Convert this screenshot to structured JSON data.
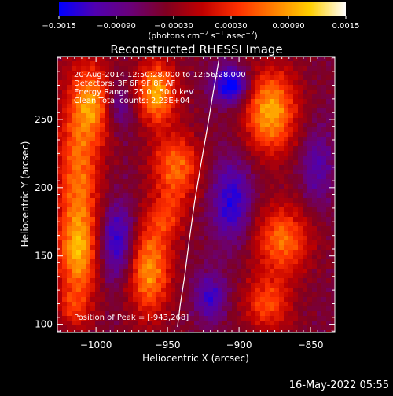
{
  "chart_data": {
    "type": "heatmap",
    "title": "Reconstructed RHESSI Image",
    "xlabel": "Heliocentric X (arcsec)",
    "ylabel": "Heliocentric Y (arcsec)",
    "xlim": [
      -1027,
      -833
    ],
    "ylim": [
      94,
      296
    ],
    "x_ticks": [
      {
        "value": -1000,
        "label": "−1000"
      },
      {
        "value": -950,
        "label": "−950"
      },
      {
        "value": -900,
        "label": "−900"
      },
      {
        "value": -850,
        "label": "−850"
      }
    ],
    "y_ticks": [
      {
        "value": 100,
        "label": "100"
      },
      {
        "value": 150,
        "label": "150"
      },
      {
        "value": 200,
        "label": "200"
      },
      {
        "value": 250,
        "label": "250"
      }
    ],
    "colorbar": {
      "range": [
        -0.0015,
        0.0015
      ],
      "ticks": [
        {
          "value": -0.0015,
          "label": "−0.0015"
        },
        {
          "value": -0.0009,
          "label": "−0.00090"
        },
        {
          "value": -0.0003,
          "label": "−0.00030"
        },
        {
          "value": 0.0003,
          "label": "0.00030"
        },
        {
          "value": 0.0009,
          "label": "0.00090"
        },
        {
          "value": 0.0015,
          "label": "0.0015"
        }
      ],
      "unit_main": "(photons cm",
      "unit_sup1": "−2",
      "unit_mid1": " s",
      "unit_sup2": "−1",
      "unit_mid2": " asec",
      "unit_sup3": "−2",
      "unit_end": ")",
      "colors": [
        "#0000ff",
        "#5000b0",
        "#6a0078",
        "#800020",
        "#c00000",
        "#ff3000",
        "#ff8000",
        "#ffd000",
        "#ffffff"
      ]
    },
    "annotations": [
      "20-Aug-2014 12:50:28.000 to 12:56:28.000",
      "Detectors: 3F 6F 9F 8F AF",
      "Energy Range: 25.0 - 50.0 keV",
      "Clean     Total counts: 2.23E+04"
    ],
    "peak_label": "Position of Peak = [-943,268]",
    "limb": [
      {
        "x": -914,
        "y": 294
      },
      {
        "x": -918,
        "y": 270
      },
      {
        "x": -922,
        "y": 245
      },
      {
        "x": -927,
        "y": 215
      },
      {
        "x": -931,
        "y": 190
      },
      {
        "x": -935,
        "y": 160
      },
      {
        "x": -938,
        "y": 135
      },
      {
        "x": -941,
        "y": 115
      },
      {
        "x": -943,
        "y": 98
      }
    ],
    "sources": [
      {
        "x": -1012,
        "y": 205,
        "sx": 11,
        "sy": 55,
        "amp": 0.0011
      },
      {
        "x": -1000,
        "y": 262,
        "sx": 10,
        "sy": 18,
        "amp": 0.001
      },
      {
        "x": -1013,
        "y": 150,
        "sx": 10,
        "sy": 20,
        "amp": 0.0008
      },
      {
        "x": -1016,
        "y": 112,
        "sx": 8,
        "sy": 10,
        "amp": 0.0005
      },
      {
        "x": -958,
        "y": 270,
        "sx": 10,
        "sy": 16,
        "amp": 0.0014
      },
      {
        "x": -944,
        "y": 215,
        "sx": 12,
        "sy": 18,
        "amp": 0.0011
      },
      {
        "x": -963,
        "y": 140,
        "sx": 11,
        "sy": 24,
        "amp": 0.0013
      },
      {
        "x": -950,
        "y": 178,
        "sx": 9,
        "sy": 12,
        "amp": 0.0006
      },
      {
        "x": -878,
        "y": 256,
        "sx": 13,
        "sy": 22,
        "amp": 0.0014
      },
      {
        "x": -870,
        "y": 162,
        "sx": 14,
        "sy": 18,
        "amp": 0.0011
      },
      {
        "x": -880,
        "y": 115,
        "sx": 12,
        "sy": 14,
        "amp": 0.0009
      },
      {
        "x": -905,
        "y": 275,
        "sx": 9,
        "sy": 10,
        "amp": -0.0012
      },
      {
        "x": -985,
        "y": 160,
        "sx": 9,
        "sy": 20,
        "amp": -0.001
      },
      {
        "x": -905,
        "y": 190,
        "sx": 10,
        "sy": 22,
        "amp": -0.0009
      },
      {
        "x": -920,
        "y": 120,
        "sx": 8,
        "sy": 12,
        "amp": -0.0008
      },
      {
        "x": -985,
        "y": 260,
        "sx": 8,
        "sy": 12,
        "amp": -0.0007
      },
      {
        "x": -845,
        "y": 215,
        "sx": 8,
        "sy": 20,
        "amp": -0.0006
      }
    ]
  },
  "footer": {
    "date": "16-May-2022 05:55"
  }
}
